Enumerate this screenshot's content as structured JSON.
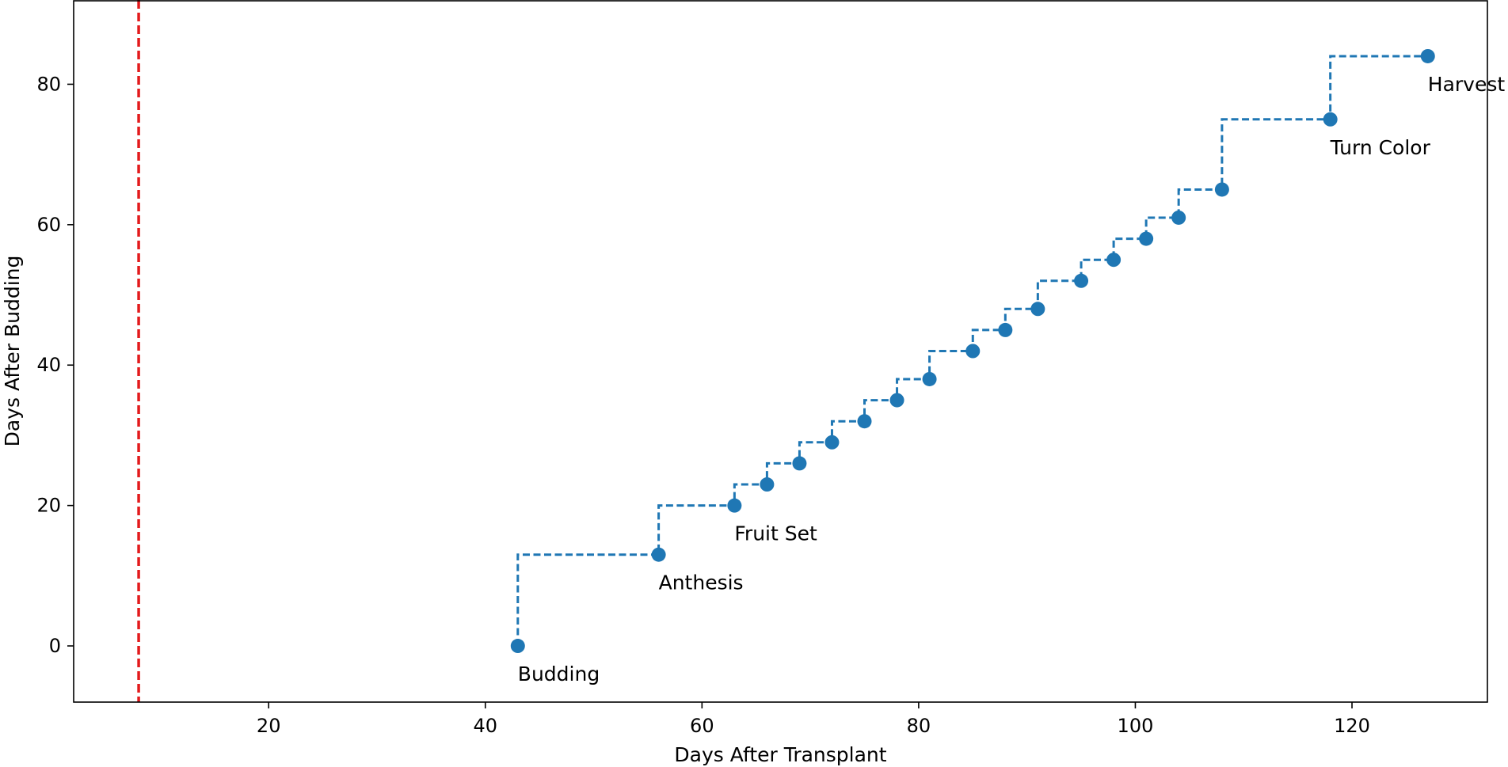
{
  "chart_data": {
    "type": "line",
    "title": "",
    "xlabel": "Days After Transplant",
    "ylabel": "Days After Budding",
    "xlim": [
      2,
      132.5
    ],
    "ylim": [
      -8,
      92
    ],
    "xticks": [
      20,
      40,
      60,
      80,
      100,
      120
    ],
    "yticks": [
      0,
      20,
      40,
      60,
      80
    ],
    "grid": false,
    "series": [
      {
        "style": "step-post-dashed-with-markers",
        "color": "#1f77b4",
        "x": [
          43,
          56,
          63,
          66,
          69,
          72,
          75,
          78,
          81,
          85,
          88,
          91,
          95,
          98,
          101,
          104,
          108,
          118,
          127
        ],
        "y": [
          0,
          13,
          20,
          23,
          26,
          29,
          32,
          35,
          38,
          42,
          45,
          48,
          52,
          55,
          58,
          61,
          65,
          75,
          84
        ]
      }
    ],
    "vline": {
      "x": 8,
      "color": "#e31a1c",
      "style": "dashed"
    },
    "annotations": [
      {
        "text": "Budding",
        "x": 43,
        "y": 0
      },
      {
        "text": "Anthesis",
        "x": 56,
        "y": 13
      },
      {
        "text": "Fruit Set",
        "x": 63,
        "y": 20
      },
      {
        "text": "Turn Color",
        "x": 118,
        "y": 75
      },
      {
        "text": "Harvest",
        "x": 127,
        "y": 84
      }
    ]
  }
}
